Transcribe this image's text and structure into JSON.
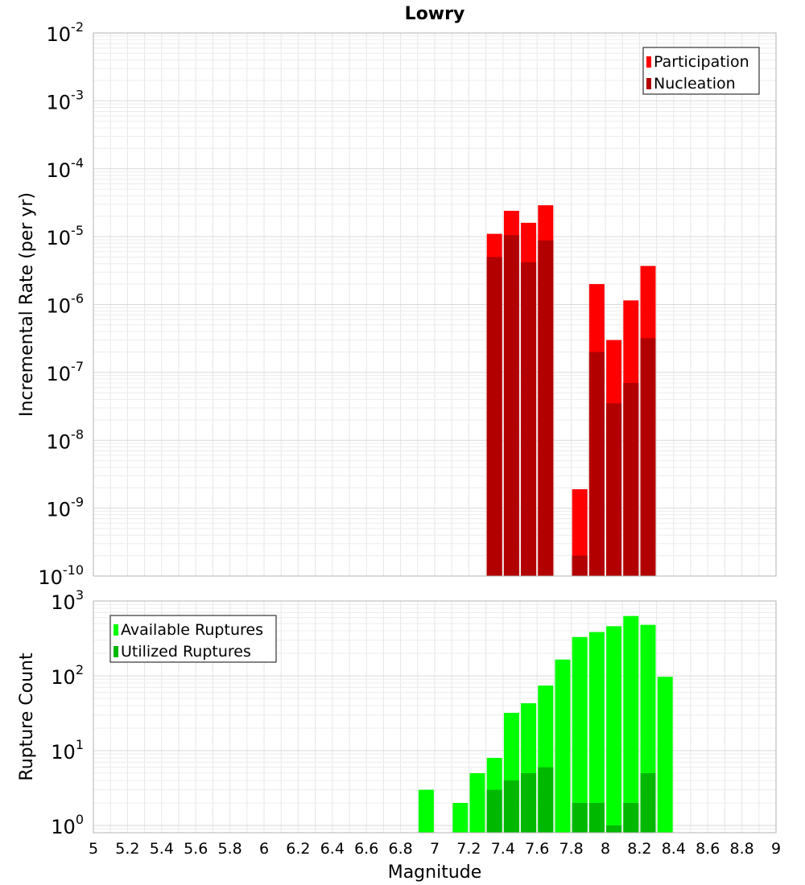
{
  "chart_data": [
    {
      "type": "bar",
      "title": "Lowry",
      "ylabel": "Incremental Rate (per yr)",
      "xlabel": "",
      "yscale": "log",
      "xlim": [
        5,
        9
      ],
      "ylim": [
        1e-10,
        0.01
      ],
      "ytick_bases": [
        "10",
        "10",
        "10",
        "10",
        "10",
        "10",
        "10",
        "10",
        "10"
      ],
      "ytick_exps": [
        "-10",
        "-9",
        "-8",
        "-7",
        "-6",
        "-5",
        "-4",
        "-3",
        "-2"
      ],
      "grid": true,
      "legend_position": "top-right",
      "x": [
        7.35,
        7.45,
        7.55,
        7.65,
        7.85,
        7.95,
        8.05,
        8.15,
        8.25
      ],
      "series": [
        {
          "name": "Participation",
          "color": "#ff0000",
          "values": [
            1.1e-05,
            2.4e-05,
            1.6e-05,
            2.9e-05,
            1.9e-09,
            2e-06,
            3e-07,
            1.15e-06,
            3.7e-06
          ]
        },
        {
          "name": "Nucleation",
          "color": "#b20000",
          "values": [
            5e-06,
            1.05e-05,
            4.2e-06,
            8.8e-06,
            2e-10,
            2e-07,
            3.5e-08,
            7e-08,
            3.2e-07
          ]
        }
      ]
    },
    {
      "type": "bar",
      "title": "",
      "ylabel": "Rupture Count",
      "xlabel": "Magnitude",
      "yscale": "log",
      "xlim": [
        5,
        9
      ],
      "ylim": [
        0.8,
        1000
      ],
      "ytick_bases": [
        "10",
        "10",
        "10",
        "10"
      ],
      "ytick_exps": [
        "0",
        "1",
        "2",
        "3"
      ],
      "xticks": [
        "5",
        "5.2",
        "5.4",
        "5.6",
        "5.8",
        "6",
        "6.2",
        "6.4",
        "6.6",
        "6.8",
        "7",
        "7.2",
        "7.4",
        "7.6",
        "7.8",
        "8",
        "8.2",
        "8.4",
        "8.6",
        "8.8",
        "9"
      ],
      "grid": true,
      "legend_position": "top-left",
      "x": [
        6.95,
        7.15,
        7.25,
        7.35,
        7.45,
        7.55,
        7.65,
        7.75,
        7.85,
        7.95,
        8.05,
        8.15,
        8.25,
        8.35
      ],
      "series": [
        {
          "name": "Available Ruptures",
          "color": "#00ff00",
          "values": [
            3,
            2,
            5,
            8,
            32,
            43,
            74,
            165,
            330,
            385,
            460,
            630,
            480,
            97
          ]
        },
        {
          "name": "Utilized Ruptures",
          "color": "#00b800",
          "values": [
            null,
            null,
            null,
            3,
            4,
            5,
            6,
            null,
            2,
            2,
            1,
            2,
            5,
            null
          ]
        }
      ]
    }
  ]
}
